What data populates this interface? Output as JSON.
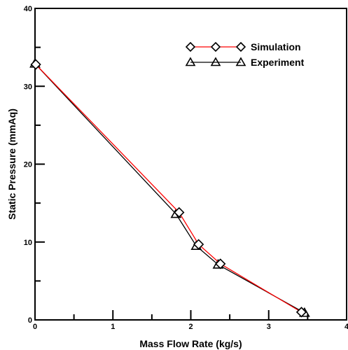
{
  "chart_data": {
    "type": "line",
    "title": "",
    "xlabel": "Mass Flow Rate (kg/s)",
    "ylabel": "Static Pressure (mmAq)",
    "xlim": [
      0,
      4
    ],
    "ylim": [
      0,
      40
    ],
    "xticks": [
      0,
      1,
      2,
      3,
      4
    ],
    "yticks": [
      0,
      10,
      20,
      30,
      40
    ],
    "grid": false,
    "legend_position": "top-right",
    "series": [
      {
        "name": "Simulation",
        "marker": "diamond",
        "color": "#ff0000",
        "x": [
          0.01,
          1.85,
          2.1,
          2.38,
          3.42
        ],
        "y": [
          32.8,
          13.8,
          9.7,
          7.2,
          1.0
        ]
      },
      {
        "name": "Experiment",
        "marker": "triangle",
        "color": "#000000",
        "x": [
          0.0,
          1.81,
          2.07,
          2.35,
          3.46
        ],
        "y": [
          32.9,
          13.6,
          9.5,
          7.1,
          0.9
        ]
      }
    ]
  }
}
